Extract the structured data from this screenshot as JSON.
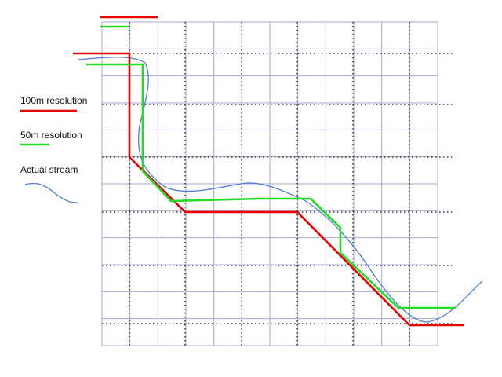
{
  "legend": {
    "res_100m": "100m resolution",
    "res_50m": "50m resolution",
    "actual": "Actual stream"
  },
  "colors": {
    "grid": "#a7a7d6",
    "dotted": "#111111",
    "res_100m": "#e60000",
    "res_50m": "#22dd22",
    "actual": "#4f7fd9",
    "background": "#ffffff"
  }
}
